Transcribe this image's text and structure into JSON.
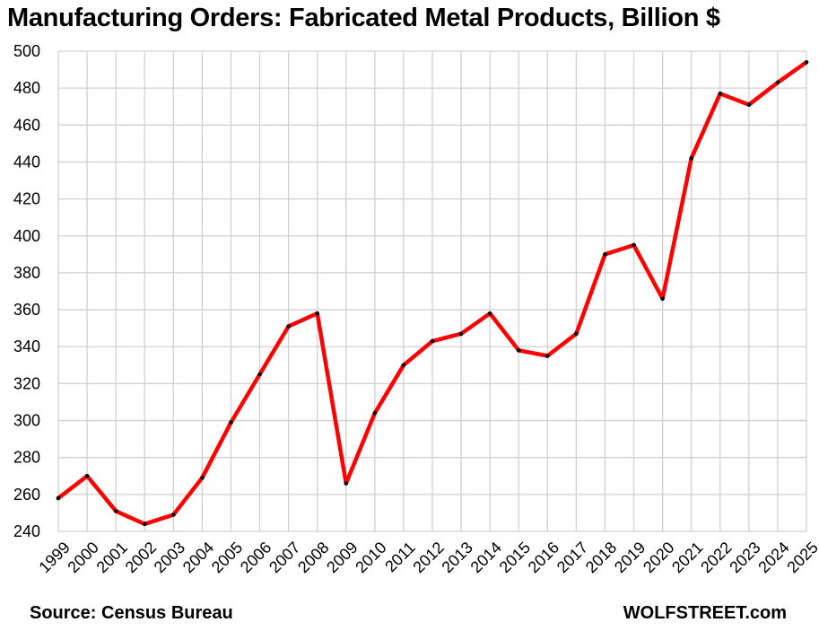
{
  "chart_data": {
    "type": "line",
    "title": "Manufacturing Orders: Fabricated Metal Products, Billion $",
    "xlabel": "",
    "ylabel": "",
    "ylim": [
      240,
      500
    ],
    "y_ticks": [
      240,
      260,
      280,
      300,
      320,
      340,
      360,
      380,
      400,
      420,
      440,
      460,
      480,
      500
    ],
    "grid": true,
    "categories": [
      "1999",
      "2000",
      "2001",
      "2002",
      "2003",
      "2004",
      "2005",
      "2006",
      "2007",
      "2008",
      "2009",
      "2010",
      "2011",
      "2012",
      "2013",
      "2014",
      "2015",
      "2016",
      "2017",
      "2018",
      "2019",
      "2020",
      "2021",
      "2022",
      "2023",
      "2024",
      "2025"
    ],
    "series": [
      {
        "name": "Fabricated Metal Products",
        "color": "#ff0000",
        "marker_color": "#000000",
        "values": [
          258,
          270,
          251,
          244,
          249,
          269,
          299,
          325,
          351,
          358,
          266,
          304,
          330,
          343,
          347,
          358,
          338,
          335,
          347,
          390,
          395,
          366,
          442,
          477,
          471,
          483,
          494
        ]
      }
    ]
  },
  "footer": {
    "source": "Source: Census Bureau",
    "brand": "WOLFSTREET.com"
  }
}
